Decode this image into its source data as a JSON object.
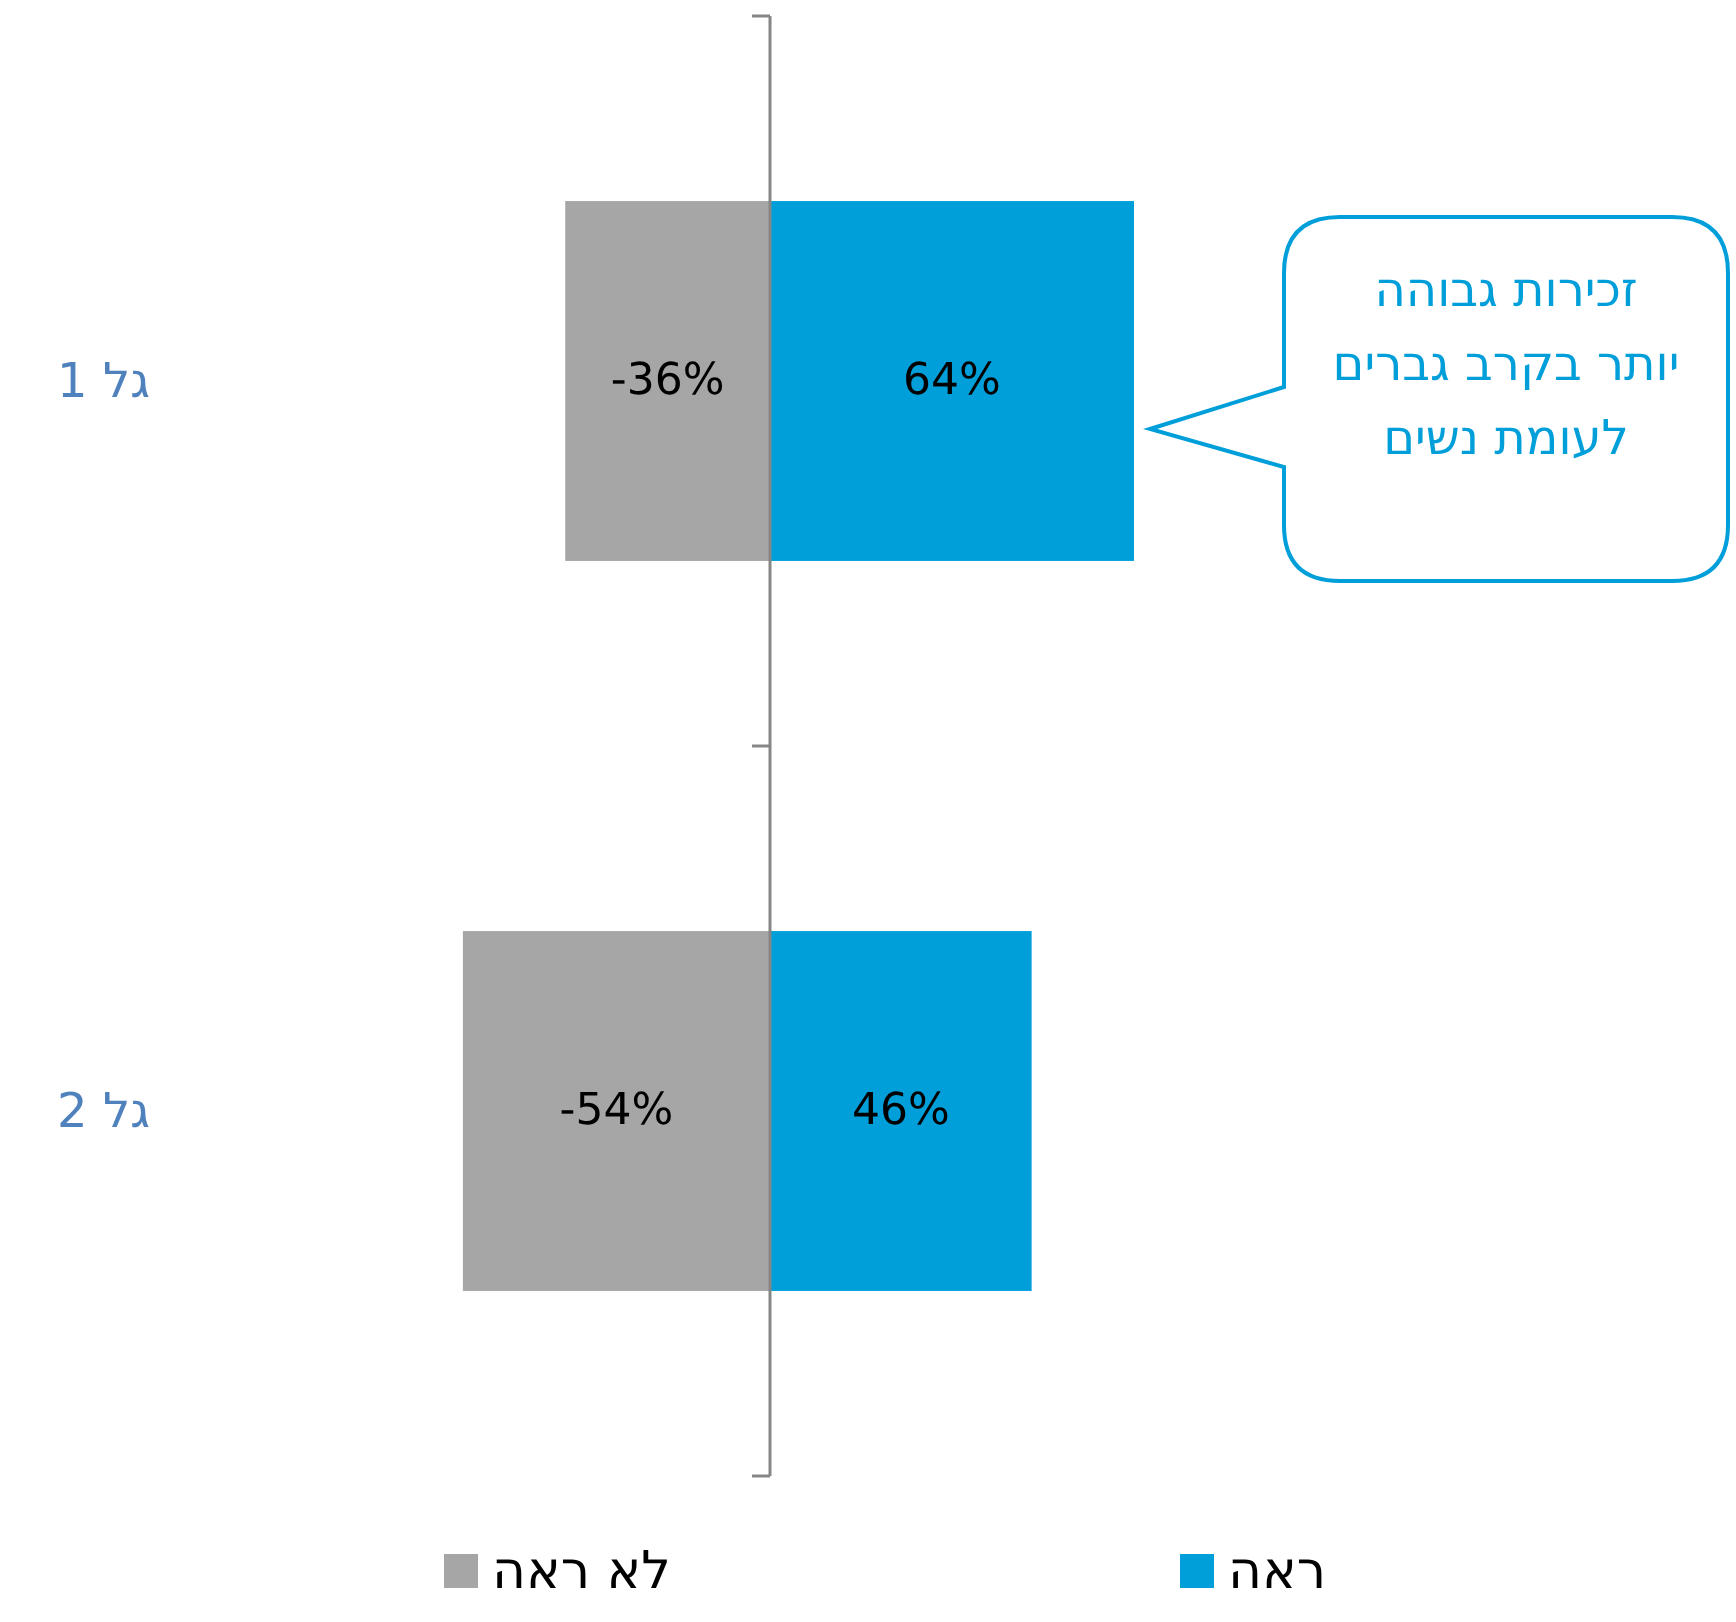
{
  "chart_data": {
    "type": "bar",
    "orientation": "horizontal",
    "stacked": true,
    "legend": "bottom",
    "grid": false,
    "categories": [
      "גל 1",
      "גל 2"
    ],
    "series": [
      {
        "name": "ראה",
        "color": "#009fda",
        "values": [
          64,
          46
        ],
        "value_labels": [
          "64%",
          "46%"
        ]
      },
      {
        "name": "לא ראה",
        "color": "#a6a6a6",
        "values": [
          -36,
          -54
        ],
        "value_labels": [
          "-36%",
          "-54%"
        ]
      }
    ],
    "annotations": [
      "זכירות גבוהה יותר בקרב גברים לעומת נשים"
    ]
  }
}
